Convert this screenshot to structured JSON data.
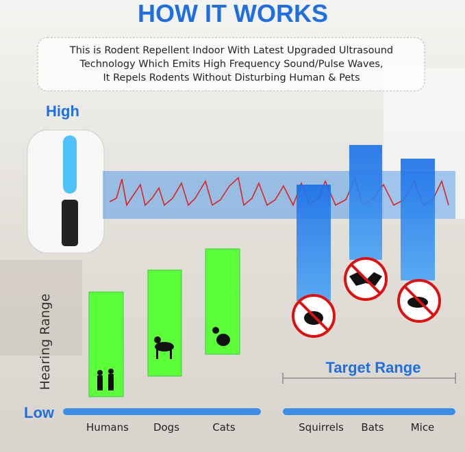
{
  "header": {
    "title": "HOW IT WORKS",
    "description": [
      "This is Rodent Repellent Indoor With Latest Upgraded Ultrasound",
      "Technology Which Emits High Frequency Sound/Pulse Waves,",
      "It Repels Rodents Without Disturbing Human & Pets"
    ]
  },
  "diagram": {
    "high_label": "High",
    "low_label": "Low",
    "axis_label": "Hearing Range",
    "target_label": "Target Range",
    "categories": [
      "Humans",
      "Dogs",
      "Cats",
      "Squirrels",
      "Bats",
      "Mice"
    ]
  }
}
